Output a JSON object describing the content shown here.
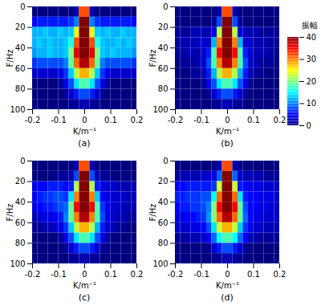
{
  "chart_data": [
    {
      "type": "heatmap",
      "label": "(a)",
      "x_label": "K/m⁻¹",
      "y_label": "F/Hz",
      "xlim": [
        -0.2,
        0.2
      ],
      "xticks": [
        -0.2,
        -0.1,
        0,
        0.1,
        0.2
      ],
      "ylim": [
        100,
        0
      ],
      "yticks": [
        0,
        20,
        40,
        60,
        80,
        100
      ],
      "k_edges": [
        -0.2,
        -0.18,
        -0.16,
        -0.14,
        -0.12,
        -0.1,
        -0.08,
        -0.06,
        -0.04,
        -0.02,
        0,
        0.02,
        0.04,
        0.06,
        0.08,
        0.1,
        0.12,
        0.14,
        0.16,
        0.18,
        0.2
      ],
      "f_edges": [
        0,
        10,
        20,
        30,
        40,
        50,
        60,
        70,
        80,
        90,
        100
      ],
      "values": [
        [
          0,
          0,
          0,
          0,
          0,
          0,
          0,
          0,
          2,
          32,
          32,
          2,
          0,
          0,
          0,
          0,
          0,
          0,
          0,
          0
        ],
        [
          5,
          6,
          6,
          6,
          6,
          6,
          6,
          7,
          10,
          40,
          40,
          10,
          7,
          6,
          6,
          6,
          6,
          6,
          6,
          5
        ],
        [
          12,
          12,
          13,
          12,
          12,
          13,
          12,
          13,
          24,
          40,
          40,
          24,
          13,
          12,
          13,
          12,
          12,
          13,
          12,
          12
        ],
        [
          12,
          13,
          12,
          13,
          12,
          12,
          13,
          16,
          32,
          40,
          40,
          32,
          16,
          13,
          12,
          12,
          13,
          12,
          13,
          12
        ],
        [
          11,
          12,
          12,
          13,
          12,
          12,
          13,
          20,
          36,
          40,
          40,
          36,
          20,
          13,
          12,
          13,
          12,
          12,
          12,
          11
        ],
        [
          7,
          8,
          8,
          8,
          8,
          8,
          10,
          19,
          31,
          38,
          38,
          31,
          19,
          10,
          8,
          8,
          8,
          8,
          8,
          7
        ],
        [
          3,
          3,
          3,
          3,
          3,
          4,
          7,
          13,
          22,
          28,
          28,
          22,
          13,
          7,
          4,
          3,
          3,
          3,
          3,
          3
        ],
        [
          0,
          0,
          0,
          0,
          0,
          1,
          4,
          8,
          14,
          18,
          18,
          14,
          8,
          4,
          1,
          0,
          0,
          0,
          0,
          0
        ],
        [
          0,
          0,
          0,
          0,
          0,
          0,
          1,
          3,
          6,
          8,
          8,
          6,
          3,
          1,
          0,
          0,
          0,
          0,
          0,
          0
        ],
        [
          0,
          0,
          0,
          0,
          0,
          0,
          0,
          1,
          1,
          2,
          2,
          1,
          1,
          0,
          0,
          0,
          0,
          0,
          0,
          0
        ]
      ]
    },
    {
      "type": "heatmap",
      "label": "(b)",
      "x_label": "K/m⁻¹",
      "y_label": "F/Hz",
      "xlim": [
        -0.2,
        0.2
      ],
      "xticks": [
        -0.2,
        -0.1,
        0,
        0.1,
        0.2
      ],
      "ylim": [
        100,
        0
      ],
      "yticks": [
        0,
        20,
        40,
        60,
        80,
        100
      ],
      "k_edges": [
        -0.2,
        -0.18,
        -0.16,
        -0.14,
        -0.12,
        -0.1,
        -0.08,
        -0.06,
        -0.04,
        -0.02,
        0,
        0.02,
        0.04,
        0.06,
        0.08,
        0.1,
        0.12,
        0.14,
        0.16,
        0.18,
        0.2
      ],
      "f_edges": [
        0,
        10,
        20,
        30,
        40,
        50,
        60,
        70,
        80,
        90,
        100
      ],
      "values": [
        [
          0,
          0,
          0,
          0,
          0,
          0,
          0,
          0,
          2,
          32,
          32,
          2,
          0,
          0,
          0,
          0,
          0,
          0,
          0,
          0
        ],
        [
          0,
          0,
          0,
          0,
          0,
          0,
          0,
          1,
          8,
          40,
          40,
          8,
          1,
          0,
          0,
          0,
          0,
          0,
          0,
          0
        ],
        [
          1,
          1,
          1,
          2,
          2,
          2,
          2,
          4,
          22,
          40,
          40,
          22,
          4,
          2,
          2,
          2,
          1,
          1,
          1,
          1
        ],
        [
          1,
          2,
          2,
          2,
          3,
          3,
          3,
          12,
          30,
          40,
          40,
          30,
          12,
          3,
          3,
          2,
          2,
          2,
          1,
          1
        ],
        [
          1,
          1,
          2,
          2,
          2,
          3,
          6,
          18,
          35,
          40,
          40,
          35,
          18,
          6,
          3,
          2,
          2,
          2,
          1,
          1
        ],
        [
          0,
          1,
          1,
          1,
          2,
          3,
          8,
          18,
          30,
          38,
          38,
          30,
          18,
          8,
          3,
          2,
          1,
          1,
          1,
          0
        ],
        [
          0,
          0,
          0,
          1,
          1,
          2,
          6,
          12,
          22,
          28,
          28,
          22,
          12,
          6,
          2,
          1,
          1,
          0,
          0,
          0
        ],
        [
          0,
          0,
          0,
          0,
          0,
          1,
          4,
          8,
          14,
          18,
          18,
          14,
          8,
          4,
          1,
          0,
          0,
          0,
          0,
          0
        ],
        [
          0,
          0,
          0,
          0,
          0,
          0,
          1,
          3,
          6,
          8,
          8,
          6,
          3,
          1,
          0,
          0,
          0,
          0,
          0,
          0
        ],
        [
          0,
          0,
          0,
          0,
          0,
          0,
          0,
          1,
          1,
          2,
          2,
          1,
          1,
          0,
          0,
          0,
          0,
          0,
          0,
          0
        ]
      ],
      "colorbar": {
        "label": "振幅",
        "range": [
          0,
          40
        ],
        "ticks": [
          0,
          10,
          20,
          30,
          40
        ]
      }
    },
    {
      "type": "heatmap",
      "label": "(c)",
      "x_label": "K/m⁻¹",
      "y_label": "F/Hz",
      "xlim": [
        -0.2,
        0.2
      ],
      "xticks": [
        -0.2,
        -0.1,
        0,
        0.1,
        0.2
      ],
      "ylim": [
        100,
        0
      ],
      "yticks": [
        0,
        20,
        40,
        60,
        80,
        100
      ],
      "k_edges": [
        -0.2,
        -0.18,
        -0.16,
        -0.14,
        -0.12,
        -0.1,
        -0.08,
        -0.06,
        -0.04,
        -0.02,
        0,
        0.02,
        0.04,
        0.06,
        0.08,
        0.1,
        0.12,
        0.14,
        0.16,
        0.18,
        0.2
      ],
      "f_edges": [
        0,
        10,
        20,
        30,
        40,
        50,
        60,
        70,
        80,
        90,
        100
      ],
      "values": [
        [
          0,
          0,
          0,
          0,
          0,
          0,
          0,
          0,
          2,
          32,
          32,
          2,
          0,
          0,
          0,
          0,
          0,
          0,
          0,
          0
        ],
        [
          0,
          0,
          0,
          0,
          1,
          1,
          1,
          2,
          8,
          40,
          40,
          8,
          2,
          1,
          1,
          0,
          0,
          0,
          0,
          0
        ],
        [
          4,
          5,
          5,
          6,
          6,
          6,
          5,
          6,
          22,
          40,
          40,
          22,
          6,
          4,
          3,
          3,
          2,
          2,
          2,
          2
        ],
        [
          5,
          6,
          7,
          7,
          8,
          8,
          7,
          14,
          30,
          40,
          40,
          30,
          13,
          5,
          4,
          3,
          3,
          3,
          2,
          2
        ],
        [
          4,
          5,
          6,
          6,
          7,
          8,
          9,
          19,
          35,
          40,
          40,
          35,
          18,
          7,
          4,
          3,
          3,
          2,
          2,
          2
        ],
        [
          2,
          3,
          4,
          4,
          5,
          6,
          10,
          19,
          30,
          38,
          38,
          30,
          18,
          8,
          4,
          3,
          2,
          2,
          1,
          1
        ],
        [
          1,
          1,
          2,
          2,
          3,
          4,
          7,
          13,
          22,
          28,
          28,
          22,
          12,
          6,
          3,
          2,
          1,
          1,
          0,
          0
        ],
        [
          0,
          0,
          0,
          0,
          0,
          1,
          4,
          8,
          14,
          18,
          18,
          14,
          8,
          4,
          1,
          0,
          0,
          0,
          0,
          0
        ],
        [
          0,
          0,
          0,
          0,
          0,
          0,
          1,
          3,
          6,
          8,
          8,
          6,
          3,
          1,
          0,
          0,
          0,
          0,
          0,
          0
        ],
        [
          0,
          0,
          0,
          0,
          0,
          0,
          0,
          1,
          1,
          2,
          2,
          1,
          1,
          0,
          0,
          0,
          0,
          0,
          0,
          0
        ]
      ]
    },
    {
      "type": "heatmap",
      "label": "(d)",
      "x_label": "K/m⁻¹",
      "y_label": "F/Hz",
      "xlim": [
        -0.2,
        0.2
      ],
      "xticks": [
        -0.2,
        -0.1,
        0,
        0.1,
        0.2
      ],
      "ylim": [
        100,
        0
      ],
      "yticks": [
        0,
        20,
        40,
        60,
        80,
        100
      ],
      "k_edges": [
        -0.2,
        -0.18,
        -0.16,
        -0.14,
        -0.12,
        -0.1,
        -0.08,
        -0.06,
        -0.04,
        -0.02,
        0,
        0.02,
        0.04,
        0.06,
        0.08,
        0.1,
        0.12,
        0.14,
        0.16,
        0.18,
        0.2
      ],
      "f_edges": [
        0,
        10,
        20,
        30,
        40,
        50,
        60,
        70,
        80,
        90,
        100
      ],
      "values": [
        [
          0,
          0,
          0,
          0,
          0,
          0,
          0,
          0,
          2,
          32,
          32,
          2,
          0,
          0,
          0,
          0,
          0,
          0,
          0,
          0
        ],
        [
          1,
          2,
          2,
          2,
          2,
          3,
          3,
          4,
          9,
          40,
          40,
          9,
          3,
          2,
          2,
          2,
          2,
          1,
          1,
          1
        ],
        [
          5,
          5,
          6,
          6,
          6,
          6,
          6,
          7,
          23,
          40,
          40,
          23,
          6,
          5,
          4,
          4,
          4,
          3,
          3,
          3
        ],
        [
          6,
          6,
          7,
          7,
          7,
          8,
          8,
          15,
          31,
          40,
          40,
          31,
          14,
          6,
          5,
          5,
          4,
          4,
          4,
          3
        ],
        [
          5,
          6,
          6,
          7,
          7,
          8,
          10,
          20,
          35,
          40,
          40,
          35,
          19,
          8,
          5,
          5,
          4,
          4,
          3,
          3
        ],
        [
          4,
          4,
          5,
          5,
          6,
          7,
          11,
          20,
          31,
          38,
          38,
          31,
          19,
          9,
          5,
          4,
          4,
          3,
          3,
          3
        ],
        [
          3,
          3,
          3,
          4,
          4,
          5,
          8,
          14,
          23,
          28,
          28,
          23,
          13,
          7,
          4,
          3,
          3,
          2,
          2,
          2
        ],
        [
          1,
          1,
          2,
          2,
          2,
          3,
          5,
          9,
          15,
          18,
          18,
          15,
          9,
          5,
          2,
          2,
          1,
          1,
          1,
          1
        ],
        [
          0,
          0,
          0,
          0,
          0,
          0,
          1,
          3,
          6,
          8,
          8,
          6,
          3,
          1,
          0,
          0,
          0,
          0,
          0,
          0
        ],
        [
          0,
          0,
          0,
          0,
          0,
          0,
          0,
          1,
          1,
          2,
          2,
          1,
          1,
          0,
          0,
          0,
          0,
          0,
          0,
          0
        ]
      ]
    }
  ]
}
